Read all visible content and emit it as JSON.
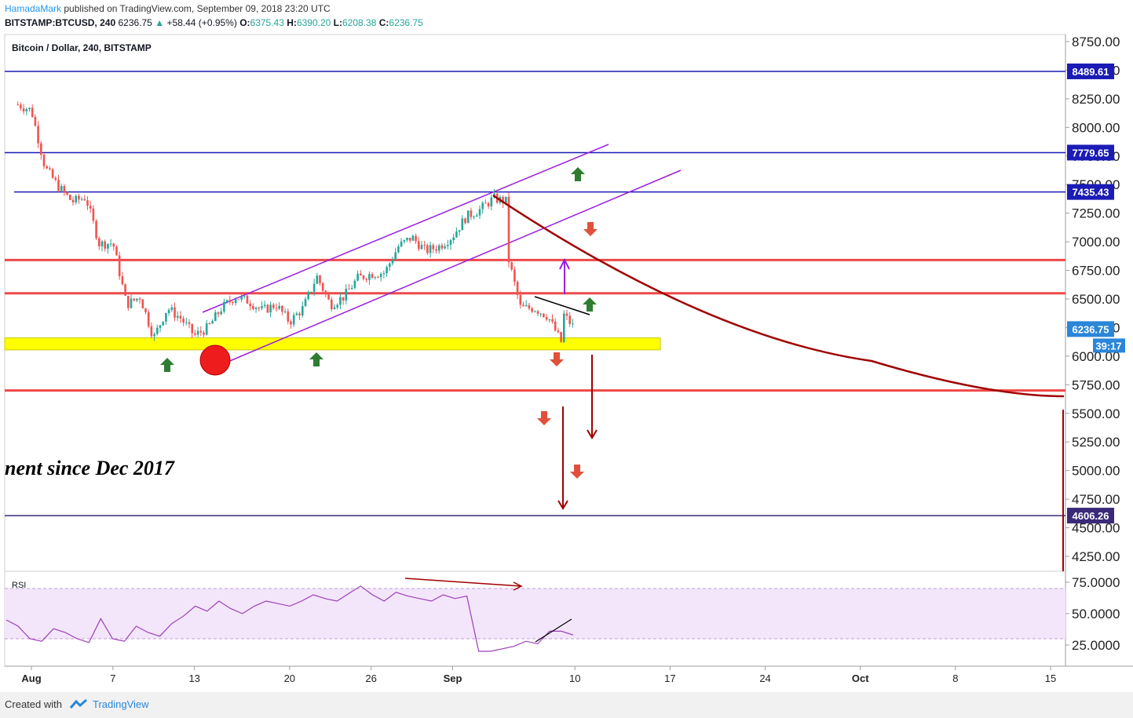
{
  "header": {
    "author": "HamadaMark",
    "published": "published on TradingView.com, September 09, 2018 23:20 UTC",
    "symbol": "BITSTAMP:BTCUSD, 240",
    "last": "6236.75",
    "change": "+58.44 (+0.95%)",
    "open_label": "O:",
    "open": "6375.43",
    "high_label": "H:",
    "high": "6390.20",
    "low_label": "L:",
    "low": "6208.38",
    "close_label": "C:",
    "close": "6236.75"
  },
  "chart_data": {
    "type": "candlestick",
    "title": "Bitcoin / Dollar, 240, BITSTAMP",
    "y_range": [
      4050,
      8800
    ],
    "y_ticks": [
      8750,
      8500,
      8250,
      8000,
      7750,
      7500,
      7250,
      7000,
      6750,
      6500,
      6250,
      6000,
      5750,
      5500,
      5250,
      5000,
      4750,
      4500,
      4250
    ],
    "y_tick_labels": [
      "8750.00",
      "8500.00",
      "8250.00",
      "8000.00",
      "7750.00",
      "7500.00",
      "7250.00",
      "7000.00",
      "6750.00",
      "6500.00",
      "6250.00",
      "6000.00",
      "5750.00",
      "5500.00",
      "5250.00",
      "5000.00",
      "4750.00",
      "4500.00",
      "4250.00"
    ],
    "x_range": [
      "2018-07-31",
      "2018-10-16"
    ],
    "x_ticks": [
      {
        "date": "2018-08-01",
        "label": "Aug",
        "bold": true
      },
      {
        "date": "2018-08-07",
        "label": "7",
        "bold": false
      },
      {
        "date": "2018-08-13",
        "label": "13",
        "bold": false
      },
      {
        "date": "2018-08-20",
        "label": "20",
        "bold": false
      },
      {
        "date": "2018-08-26",
        "label": "26",
        "bold": false
      },
      {
        "date": "2018-09-01",
        "label": "Sep",
        "bold": true
      },
      {
        "date": "2018-09-10",
        "label": "10",
        "bold": false
      },
      {
        "date": "2018-09-17",
        "label": "17",
        "bold": false
      },
      {
        "date": "2018-09-24",
        "label": "24",
        "bold": false
      },
      {
        "date": "2018-10-01",
        "label": "Oct",
        "bold": true
      },
      {
        "date": "2018-10-08",
        "label": "8",
        "bold": false
      },
      {
        "date": "2018-10-15",
        "label": "15",
        "bold": false
      }
    ],
    "price_path": [
      {
        "date": "2018-07-31",
        "price": 8200
      },
      {
        "date": "2018-08-01",
        "price": 8150
      },
      {
        "date": "2018-08-02",
        "price": 7650
      },
      {
        "date": "2018-08-03",
        "price": 7480
      },
      {
        "date": "2018-08-04",
        "price": 7350
      },
      {
        "date": "2018-08-05",
        "price": 7390
      },
      {
        "date": "2018-08-06",
        "price": 6980
      },
      {
        "date": "2018-08-07",
        "price": 6990
      },
      {
        "date": "2018-08-08",
        "price": 6450
      },
      {
        "date": "2018-08-09",
        "price": 6520
      },
      {
        "date": "2018-08-10",
        "price": 6160
      },
      {
        "date": "2018-08-11",
        "price": 6420
      },
      {
        "date": "2018-08-12",
        "price": 6330
      },
      {
        "date": "2018-08-13",
        "price": 6180
      },
      {
        "date": "2018-08-14",
        "price": 6250
      },
      {
        "date": "2018-08-15",
        "price": 6420
      },
      {
        "date": "2018-08-16",
        "price": 6520
      },
      {
        "date": "2018-08-17",
        "price": 6480
      },
      {
        "date": "2018-08-18",
        "price": 6400
      },
      {
        "date": "2018-08-19",
        "price": 6450
      },
      {
        "date": "2018-08-20",
        "price": 6300
      },
      {
        "date": "2018-08-21",
        "price": 6420
      },
      {
        "date": "2018-08-22",
        "price": 6700
      },
      {
        "date": "2018-08-23",
        "price": 6450
      },
      {
        "date": "2018-08-24",
        "price": 6520
      },
      {
        "date": "2018-08-25",
        "price": 6680
      },
      {
        "date": "2018-08-26",
        "price": 6720
      },
      {
        "date": "2018-08-27",
        "price": 6730
      },
      {
        "date": "2018-08-28",
        "price": 6960
      },
      {
        "date": "2018-08-29",
        "price": 7040
      },
      {
        "date": "2018-08-30",
        "price": 6920
      },
      {
        "date": "2018-08-31",
        "price": 6960
      },
      {
        "date": "2018-09-01",
        "price": 7050
      },
      {
        "date": "2018-09-02",
        "price": 7220
      },
      {
        "date": "2018-09-03",
        "price": 7280
      },
      {
        "date": "2018-09-04",
        "price": 7380
      },
      {
        "date": "2018-09-05",
        "price": 7350
      },
      {
        "date": "2018-09-05",
        "price": 6900
      },
      {
        "date": "2018-09-06",
        "price": 6420
      },
      {
        "date": "2018-09-07",
        "price": 6420
      },
      {
        "date": "2018-09-08",
        "price": 6350
      },
      {
        "date": "2018-09-09",
        "price": 6120
      },
      {
        "date": "2018-09-09",
        "price": 6390
      },
      {
        "date": "2018-09-10",
        "price": 6236.75
      }
    ],
    "price_labels": [
      {
        "value": 8489.61,
        "text": "8489.61",
        "color": "#1b1bb5"
      },
      {
        "value": 7779.65,
        "text": "7779.65",
        "color": "#1b1bb5"
      },
      {
        "value": 7435.43,
        "text": "7435.43",
        "color": "#1b1bb5"
      },
      {
        "value": 6236.75,
        "text": "6236.75",
        "color": "#2a86d9"
      },
      {
        "value": 4606.26,
        "text": "4606.26",
        "color": "#3b2a78"
      }
    ],
    "countdown": "39:17",
    "horizontal_levels": [
      {
        "value": 8489.61,
        "color": "#1b1bb5"
      },
      {
        "value": 7779.65,
        "color": "#1b1bb5"
      },
      {
        "value": 7435.43,
        "color": "#1b1bb5"
      },
      {
        "value": 6840,
        "color": "#ef4848"
      },
      {
        "value": 6550,
        "color": "#ef4848"
      },
      {
        "value": 5700,
        "color": "#ef4848"
      },
      {
        "value": 4606.26,
        "color": "#3b2a78"
      }
    ],
    "support_zone": {
      "from": 6055,
      "to": 6160,
      "color": "#ffff00"
    },
    "annotation_text": "nent since Dec 2017",
    "rsi": {
      "label": "RSI",
      "y_range": [
        15,
        80
      ],
      "band": [
        30,
        70
      ],
      "ticks": [
        75,
        50,
        25
      ],
      "tick_labels": [
        "75.0000",
        "50.0000",
        "25.0000"
      ],
      "values": [
        45,
        40,
        30,
        28,
        38,
        35,
        30,
        27,
        46,
        30,
        28,
        40,
        35,
        32,
        42,
        48,
        56,
        52,
        60,
        54,
        50,
        56,
        60,
        58,
        56,
        60,
        65,
        62,
        60,
        66,
        72,
        65,
        60,
        67,
        64,
        62,
        60,
        65,
        62,
        64,
        20,
        20,
        22,
        24,
        28,
        26,
        36,
        36,
        33
      ]
    }
  }
}
